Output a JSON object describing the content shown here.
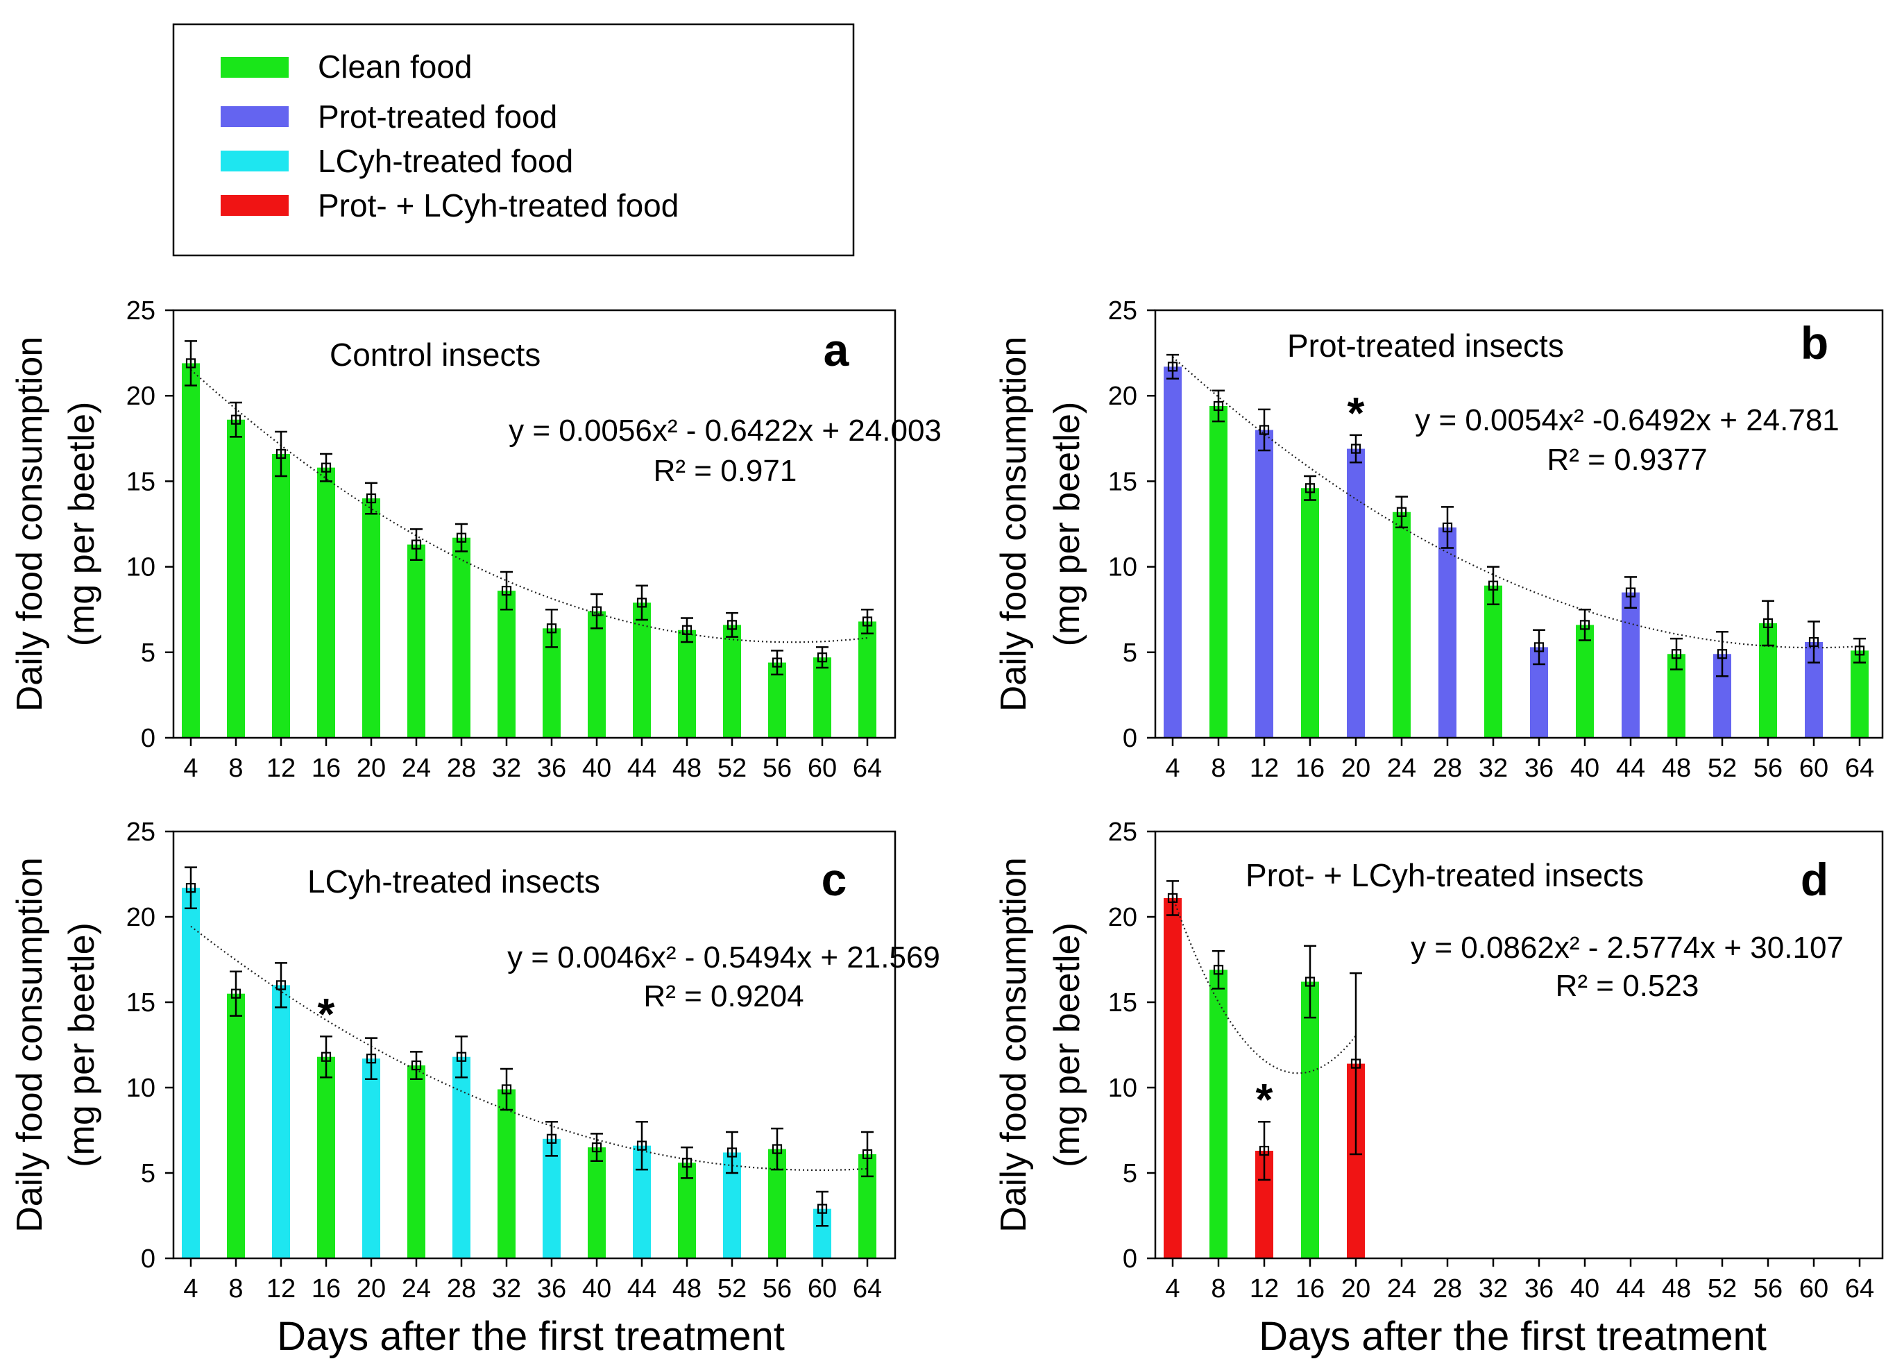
{
  "colors": {
    "clean": "#19e619",
    "prot": "#6464f0",
    "lcyh": "#1ee6f0",
    "combo": "#f01414"
  },
  "legend": {
    "items": [
      {
        "key": "clean",
        "label": "Clean food"
      },
      {
        "key": "prot",
        "label": "Prot-treated food"
      },
      {
        "key": "lcyh",
        "label": "LCyh-treated food"
      },
      {
        "key": "combo",
        "label": "Prot- + LCyh-treated food"
      }
    ]
  },
  "chart_data": [
    {
      "id": "a",
      "type": "bar",
      "letter": "a",
      "title": "Control insects",
      "ylabel_line1": "Daily food consumption",
      "ylabel_line2": "(mg per beetle)",
      "xlabel": "",
      "ylim": [
        0,
        25
      ],
      "yticks": [
        "0",
        "5",
        "10",
        "15",
        "20",
        "25"
      ],
      "categories": [
        "4",
        "8",
        "12",
        "16",
        "20",
        "24",
        "28",
        "32",
        "36",
        "40",
        "44",
        "48",
        "52",
        "56",
        "60",
        "64"
      ],
      "values": [
        21.9,
        18.6,
        16.6,
        15.8,
        14.0,
        11.3,
        11.7,
        8.6,
        6.4,
        7.4,
        7.9,
        6.3,
        6.6,
        4.4,
        4.7,
        6.8
      ],
      "errors": [
        1.3,
        1.0,
        1.3,
        0.8,
        0.9,
        0.9,
        0.8,
        1.1,
        1.1,
        1.0,
        1.0,
        0.7,
        0.7,
        0.7,
        0.6,
        0.7
      ],
      "food": [
        "clean",
        "clean",
        "clean",
        "clean",
        "clean",
        "clean",
        "clean",
        "clean",
        "clean",
        "clean",
        "clean",
        "clean",
        "clean",
        "clean",
        "clean",
        "clean"
      ],
      "stars": [],
      "fit_coeffs": [
        0.0056,
        -0.6422,
        24.003
      ],
      "fit_range": [
        4,
        64
      ],
      "equation": "y = 0.0056x² - 0.6422x + 24.003",
      "r2": "R² = 0.971"
    },
    {
      "id": "b",
      "type": "bar",
      "letter": "b",
      "title": "Prot-treated insects",
      "ylabel_line1": "Daily food consumption",
      "ylabel_line2": "(mg per beetle)",
      "xlabel": "",
      "ylim": [
        0,
        25
      ],
      "yticks": [
        "0",
        "5",
        "10",
        "15",
        "20",
        "25"
      ],
      "categories": [
        "4",
        "8",
        "12",
        "16",
        "20",
        "24",
        "28",
        "32",
        "36",
        "40",
        "44",
        "48",
        "52",
        "56",
        "60",
        "64"
      ],
      "values": [
        21.7,
        19.4,
        18.0,
        14.6,
        16.9,
        13.2,
        12.3,
        8.9,
        5.3,
        6.6,
        8.5,
        4.9,
        4.9,
        6.7,
        5.6,
        5.1
      ],
      "errors": [
        0.7,
        0.9,
        1.2,
        0.7,
        0.8,
        0.9,
        1.2,
        1.1,
        1.0,
        0.9,
        0.9,
        0.9,
        1.3,
        1.3,
        1.2,
        0.7
      ],
      "food": [
        "prot",
        "clean",
        "prot",
        "clean",
        "prot",
        "clean",
        "prot",
        "clean",
        "prot",
        "clean",
        "prot",
        "clean",
        "prot",
        "clean",
        "prot",
        "clean"
      ],
      "stars": [
        {
          "category": "20",
          "label": "*"
        }
      ],
      "fit_coeffs": [
        0.0054,
        -0.6492,
        24.781
      ],
      "fit_range": [
        4,
        64
      ],
      "equation": "y = 0.0054x² -0.6492x + 24.781",
      "r2": "R² = 0.9377"
    },
    {
      "id": "c",
      "type": "bar",
      "letter": "c",
      "title": "LCyh-treated insects",
      "ylabel_line1": "Daily food consumption",
      "ylabel_line2": "(mg per beetle)",
      "xlabel": "Days after the first treatment",
      "ylim": [
        0,
        25
      ],
      "yticks": [
        "0",
        "5",
        "10",
        "15",
        "20",
        "25"
      ],
      "categories": [
        "4",
        "8",
        "12",
        "16",
        "20",
        "24",
        "28",
        "32",
        "36",
        "40",
        "44",
        "48",
        "52",
        "56",
        "60",
        "64"
      ],
      "values": [
        21.7,
        15.5,
        16.0,
        11.8,
        11.7,
        11.3,
        11.8,
        9.9,
        7.0,
        6.5,
        6.6,
        5.6,
        6.2,
        6.4,
        2.9,
        6.1
      ],
      "errors": [
        1.2,
        1.3,
        1.3,
        1.2,
        1.2,
        0.8,
        1.2,
        1.2,
        1.0,
        0.8,
        1.4,
        0.9,
        1.2,
        1.2,
        1.0,
        1.3
      ],
      "food": [
        "lcyh",
        "clean",
        "lcyh",
        "clean",
        "lcyh",
        "clean",
        "lcyh",
        "clean",
        "lcyh",
        "clean",
        "lcyh",
        "clean",
        "lcyh",
        "clean",
        "lcyh",
        "clean"
      ],
      "stars": [
        {
          "category": "16",
          "label": "*"
        }
      ],
      "fit_coeffs": [
        0.0046,
        -0.5494,
        21.569
      ],
      "fit_range": [
        4,
        64
      ],
      "equation": "y = 0.0046x² - 0.5494x + 21.569",
      "r2": "R² = 0.9204"
    },
    {
      "id": "d",
      "type": "bar",
      "letter": "d",
      "title": "Prot- + LCyh-treated insects",
      "ylabel_line1": "Daily food consumption",
      "ylabel_line2": "(mg per beetle)",
      "xlabel": "Days after the first treatment",
      "ylim": [
        0,
        25
      ],
      "yticks": [
        "0",
        "5",
        "10",
        "15",
        "20",
        "25"
      ],
      "categories": [
        "4",
        "8",
        "12",
        "16",
        "20",
        "24",
        "28",
        "32",
        "36",
        "40",
        "44",
        "48",
        "52",
        "56",
        "60",
        "64"
      ],
      "values": [
        21.1,
        16.9,
        6.3,
        16.2,
        11.4,
        null,
        null,
        null,
        null,
        null,
        null,
        null,
        null,
        null,
        null,
        null
      ],
      "errors": [
        1.0,
        1.1,
        1.7,
        2.1,
        5.3,
        null,
        null,
        null,
        null,
        null,
        null,
        null,
        null,
        null,
        null,
        null
      ],
      "food": [
        "combo",
        "clean",
        "combo",
        "clean",
        "combo",
        "",
        "",
        "",
        "",
        "",
        "",
        "",
        "",
        "",
        "",
        ""
      ],
      "stars": [
        {
          "category": "12",
          "label": "*"
        }
      ],
      "fit_coeffs": [
        0.0862,
        -2.5774,
        30.107
      ],
      "fit_range": [
        4,
        20
      ],
      "equation": "y = 0.0862x² - 2.5774x + 30.107",
      "r2": "R² = 0.523"
    }
  ]
}
